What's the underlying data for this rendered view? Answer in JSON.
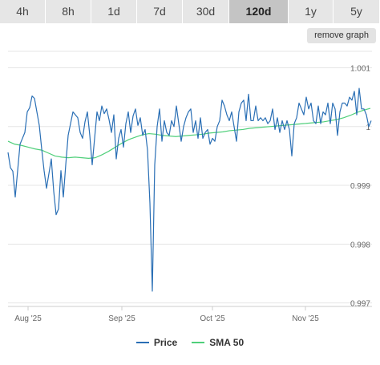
{
  "tabs": [
    {
      "label": "4h",
      "active": false
    },
    {
      "label": "8h",
      "active": false
    },
    {
      "label": "1d",
      "active": false
    },
    {
      "label": "7d",
      "active": false
    },
    {
      "label": "30d",
      "active": false
    },
    {
      "label": "120d",
      "active": true
    },
    {
      "label": "1y",
      "active": false
    },
    {
      "label": "5y",
      "active": false
    }
  ],
  "remove_graph_label": "remove graph",
  "colors": {
    "price": "#2a6fb5",
    "sma": "#4fcf7a"
  },
  "chart_data": {
    "type": "line",
    "x_ticks": [
      "Aug '25",
      "Sep '25",
      "Oct '25",
      "Nov '25"
    ],
    "y_ticks": [
      "0.997",
      "0.998",
      "0.999",
      "1",
      "1.001"
    ],
    "ylim": [
      0.99694,
      1.00128
    ],
    "legend": [
      "Price",
      "SMA 50"
    ],
    "series": [
      {
        "name": "Price",
        "values": [
          0.99956,
          0.9993,
          0.99924,
          0.9988,
          0.99925,
          0.9997,
          0.9998,
          0.9999,
          1.00025,
          1.00032,
          1.00052,
          1.00048,
          1.00025,
          1.00002,
          0.99962,
          0.99925,
          0.99895,
          0.9992,
          0.99945,
          0.9989,
          0.9985,
          0.9986,
          0.99925,
          0.9988,
          0.99935,
          0.99985,
          1.00005,
          1.00025,
          1.0002,
          1.00015,
          0.9999,
          0.9998,
          1.00008,
          1.00025,
          0.99985,
          0.99935,
          0.9998,
          1.00025,
          1.0001,
          1.00035,
          1.00022,
          1.0003,
          1.00012,
          0.9999,
          1.0002,
          0.99945,
          0.9998,
          0.99995,
          0.99965,
          1.00005,
          1.00025,
          0.9999,
          1.00018,
          1.0003,
          1.00002,
          1.00015,
          0.99985,
          0.99995,
          0.9996,
          0.9987,
          0.9972,
          0.99935,
          1.0,
          1.0003,
          0.99975,
          1.0001,
          0.9999,
          0.99985,
          1.0001,
          1.0,
          1.00035,
          1.00005,
          0.99975,
          1.0,
          1.00015,
          1.00025,
          1.0003,
          0.9999,
          1.0001,
          0.9998,
          1.00015,
          0.9998,
          0.9999,
          0.99995,
          0.9997,
          0.9998,
          0.99975,
          1.0,
          1.0001,
          1.00045,
          1.00035,
          1.0002,
          1.0001,
          1.00025,
          1.0,
          0.99975,
          1.00025,
          1.0004,
          1.00045,
          1.0001,
          1.00055,
          1.0001,
          1.0001,
          1.00035,
          1.0001,
          1.00015,
          1.0001,
          1.00015,
          1.00005,
          1.0001,
          1.0003,
          0.99995,
          1.00015,
          0.9999,
          1.0001,
          0.99995,
          1.0001,
          0.99995,
          0.9995,
          1.00005,
          1.00015,
          1.0004,
          1.0003,
          1.0002,
          1.0005,
          1.0003,
          1.0004,
          1.0001,
          1.00005,
          1.00035,
          1.00005,
          1.00025,
          1.0002,
          1.0004,
          1.00005,
          1.0004,
          1.0003,
          0.99985,
          1.00025,
          1.0004,
          1.0004,
          1.00035,
          1.0005,
          1.00045,
          1.0006,
          1.0002,
          1.00065,
          1.0003,
          1.0003,
          1.0002,
          1.0,
          1.0001
        ]
      },
      {
        "name": "SMA 50",
        "values": [
          0.99975,
          0.9997,
          0.99968,
          0.99965,
          0.99962,
          0.9996,
          0.99955,
          0.9995,
          0.99948,
          0.99947,
          0.99948,
          0.99947,
          0.99946,
          0.99947,
          0.99952,
          0.99958,
          0.99965,
          0.99972,
          0.99978,
          0.99982,
          0.99986,
          0.99988,
          0.99987,
          0.99985,
          0.99984,
          0.99983,
          0.99984,
          0.99985,
          0.99986,
          0.99987,
          0.99989,
          0.9999,
          0.99991,
          0.99993,
          0.99994,
          0.99995,
          0.99997,
          0.99998,
          0.99999,
          1.0,
          1.00001,
          1.00002,
          1.00003,
          1.00004,
          1.00005,
          1.00006,
          1.00007,
          1.00008,
          1.0001,
          1.00012,
          1.00015,
          1.00019,
          1.00024,
          1.00028,
          1.00031
        ]
      }
    ]
  }
}
